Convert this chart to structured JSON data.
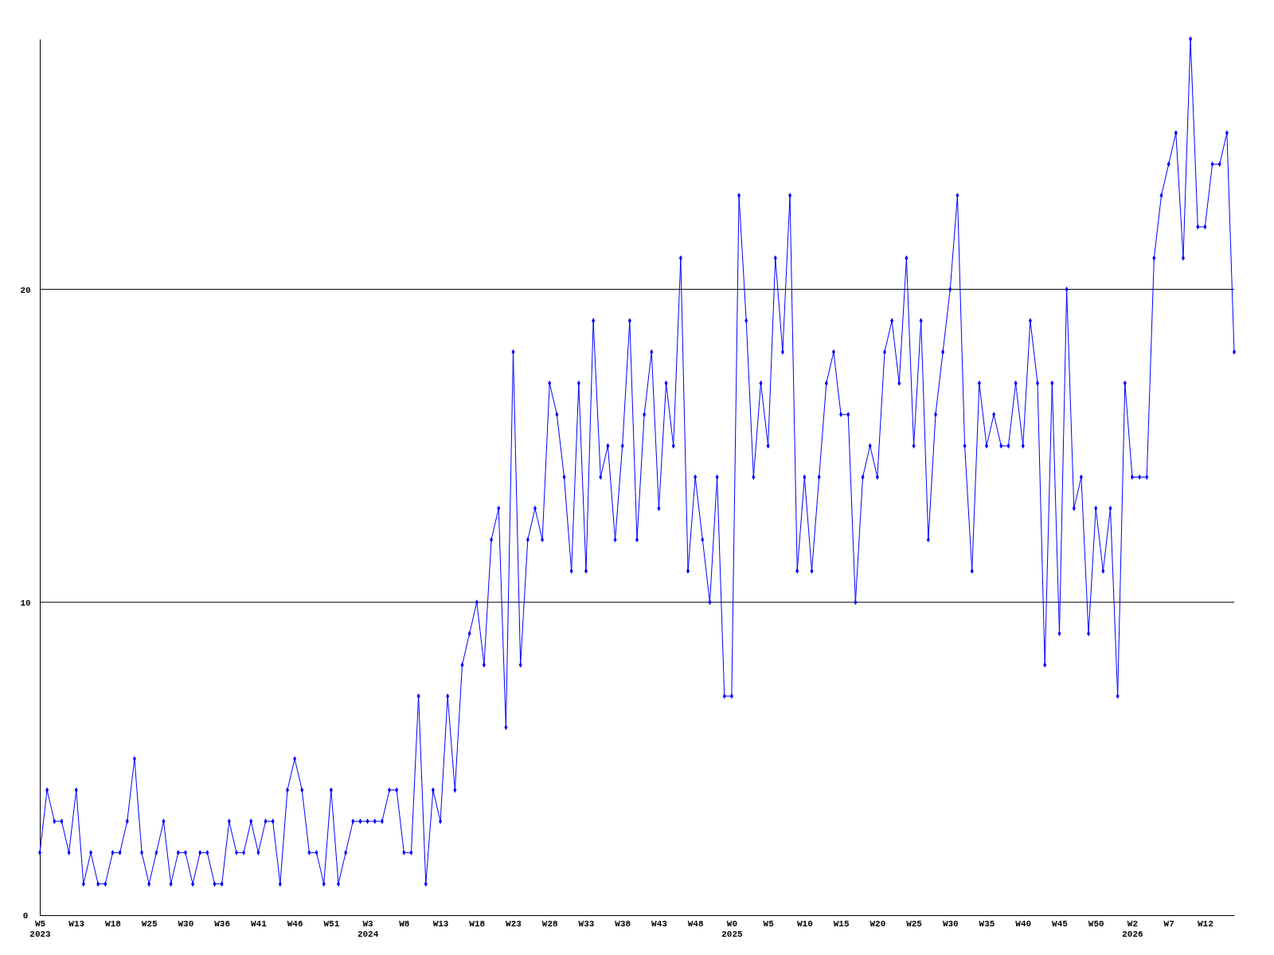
{
  "chart_data": {
    "type": "line",
    "categories": [
      "W5\n2023",
      null,
      null,
      null,
      null,
      "W13",
      null,
      null,
      null,
      null,
      "W18",
      null,
      null,
      null,
      null,
      "W25",
      null,
      null,
      null,
      null,
      "W30",
      null,
      null,
      null,
      null,
      "W36",
      null,
      null,
      null,
      null,
      "W41",
      null,
      null,
      null,
      null,
      "W46",
      null,
      null,
      null,
      null,
      "W51",
      null,
      null,
      null,
      null,
      "W3\n2024",
      null,
      null,
      null,
      null,
      "W8",
      null,
      null,
      null,
      null,
      "W13",
      null,
      null,
      null,
      null,
      "W18",
      null,
      null,
      null,
      null,
      "W23",
      null,
      null,
      null,
      null,
      "W28",
      null,
      null,
      null,
      null,
      "W33",
      null,
      null,
      null,
      null,
      "W38",
      null,
      null,
      null,
      null,
      "W43",
      null,
      null,
      null,
      null,
      "W48",
      null,
      null,
      null,
      null,
      "W0\n2025",
      null,
      null,
      null,
      null,
      "W5",
      null,
      null,
      null,
      null,
      "W10",
      null,
      null,
      null,
      null,
      "W15",
      null,
      null,
      null,
      null,
      "W20",
      null,
      null,
      null,
      null,
      "W25",
      null,
      null,
      null,
      null,
      "W30",
      null,
      null,
      null,
      null,
      "W35",
      null,
      null,
      null,
      null,
      "W40",
      null,
      null,
      null,
      null,
      "W45",
      null,
      null,
      null,
      null,
      "W50",
      null,
      null,
      null,
      null,
      "W2\n2026",
      null,
      null,
      null,
      null,
      "W7",
      null,
      null,
      null,
      null,
      "W12",
      null,
      null,
      null,
      null
    ],
    "series": [
      {
        "color": "#0000ff",
        "values": [
          2,
          4,
          3,
          3,
          2,
          4,
          1,
          2,
          1,
          1,
          2,
          2,
          3,
          5,
          2,
          1,
          2,
          3,
          1,
          2,
          2,
          1,
          2,
          2,
          1,
          1,
          3,
          2,
          2,
          3,
          2,
          3,
          3,
          1,
          4,
          5,
          4,
          2,
          2,
          1,
          4,
          1,
          2,
          3,
          3,
          3,
          3,
          3,
          4,
          4,
          2,
          2,
          7,
          1,
          4,
          3,
          7,
          4,
          8,
          9,
          10,
          8,
          12,
          13,
          6,
          18,
          8,
          12,
          13,
          12,
          17,
          16,
          14,
          11,
          17,
          11,
          19,
          14,
          15,
          12,
          15,
          19,
          12,
          16,
          18,
          13,
          17,
          15,
          21,
          11,
          14,
          12,
          10,
          14,
          7,
          7,
          23,
          19,
          14,
          17,
          15,
          21,
          18,
          23,
          11,
          14,
          11,
          14,
          17,
          18,
          16,
          16,
          10,
          14,
          15,
          14,
          18,
          19,
          17,
          21,
          15,
          19,
          12,
          16,
          18,
          20,
          23,
          15,
          11,
          17,
          15,
          16,
          15,
          15,
          17,
          15,
          19,
          17,
          8,
          17,
          9,
          20,
          13,
          14,
          9,
          13,
          11,
          13,
          7,
          17,
          14,
          14,
          14,
          21,
          23,
          24,
          25,
          21,
          28,
          22,
          22,
          24,
          24,
          25,
          18
        ]
      }
    ],
    "ylim": [
      0,
      28
    ],
    "yticks": [
      0,
      10,
      20
    ],
    "grid": "y",
    "marker": "diamond",
    "line_style": "solid"
  }
}
